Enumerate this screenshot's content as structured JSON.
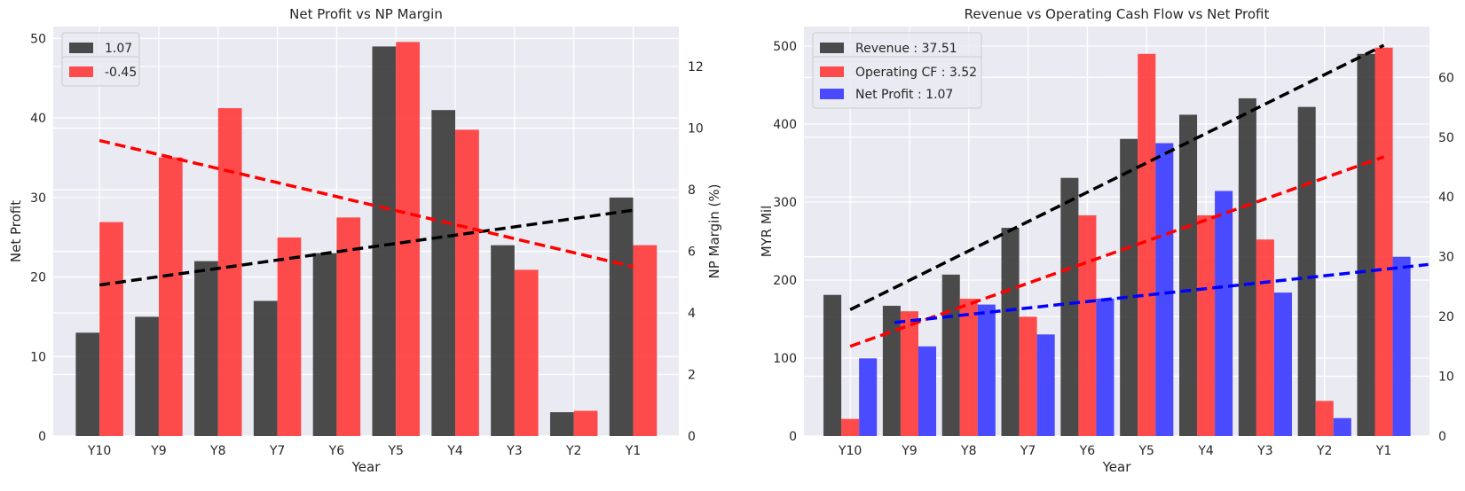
{
  "chart_data": [
    {
      "type": "bar",
      "title": "Net Profit vs NP Margin",
      "xlabel": "Year",
      "ylabel": "Net Profit",
      "y2label": "NP Margin (%)",
      "categories": [
        "Y10",
        "Y9",
        "Y8",
        "Y7",
        "Y6",
        "Y5",
        "Y4",
        "Y3",
        "Y2",
        "Y1"
      ],
      "ylim": [
        0,
        51.5
      ],
      "yticks": [
        0,
        10,
        20,
        30,
        40,
        50
      ],
      "y2lim": [
        0,
        13.3
      ],
      "y2ticks": [
        0,
        2,
        4,
        6,
        8,
        10,
        12
      ],
      "grid": true,
      "legend_position": "top-left",
      "series": [
        {
          "name": "1.07",
          "axis": "left",
          "color": "#333333",
          "values": [
            13,
            15,
            22,
            17,
            23,
            49,
            41,
            24,
            3,
            30
          ]
        },
        {
          "name": "-0.45",
          "axis": "right",
          "color": "#ff3333",
          "values": [
            6.95,
            9.05,
            10.65,
            6.45,
            7.1,
            12.8,
            9.95,
            5.4,
            0.82,
            6.2
          ]
        }
      ],
      "trendlines": [
        {
          "axis": "left",
          "color": "#000000",
          "from": [
            0,
            19.0
          ],
          "to": [
            9,
            28.4
          ]
        },
        {
          "axis": "right",
          "color": "#ff0000",
          "from": [
            0,
            9.6
          ],
          "to": [
            9,
            5.5
          ]
        }
      ]
    },
    {
      "type": "bar",
      "title": "Revenue vs Operating Cash Flow vs Net Profit",
      "xlabel": "Year",
      "ylabel": "MYR Mil",
      "categories": [
        "Y10",
        "Y9",
        "Y8",
        "Y7",
        "Y6",
        "Y5",
        "Y4",
        "Y3",
        "Y2",
        "Y1"
      ],
      "ylim": [
        0,
        525
      ],
      "yticks": [
        0,
        100,
        200,
        300,
        400,
        500
      ],
      "y2lim": [
        0,
        68.5
      ],
      "y2ticks": [
        0,
        10,
        20,
        30,
        40,
        50,
        60
      ],
      "grid": true,
      "legend_position": "top-left",
      "series": [
        {
          "name": "Revenue : 37.51",
          "axis": "left",
          "color": "#333333",
          "values": [
            181,
            167,
            207,
            267,
            331,
            381,
            412,
            433,
            422,
            490
          ]
        },
        {
          "name": "Operating CF : 3.52",
          "axis": "left",
          "color": "#ff3333",
          "values": [
            22,
            160,
            176,
            153,
            283,
            490,
            283,
            252,
            45,
            498
          ]
        },
        {
          "name": "Net Profit : 1.07",
          "axis": "right",
          "color": "#3333ff",
          "values": [
            13,
            15,
            22,
            17,
            23,
            49,
            41,
            24,
            3,
            30
          ]
        }
      ],
      "trendlines": [
        {
          "axis": "left",
          "color": "#000000",
          "from": [
            0,
            162
          ],
          "to": [
            9,
            501
          ]
        },
        {
          "axis": "left",
          "color": "#ff0000",
          "from": [
            0,
            115
          ],
          "to": [
            9,
            358
          ]
        },
        {
          "axis": "right",
          "color": "#0000ff",
          "from": [
            0.75,
            19.0
          ],
          "to": [
            9.75,
            28.7
          ]
        }
      ]
    }
  ]
}
